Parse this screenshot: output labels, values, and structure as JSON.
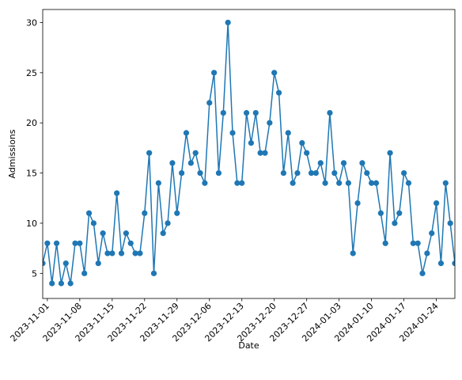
{
  "chart_data": {
    "type": "line",
    "title": "",
    "xlabel": "Date",
    "ylabel": "Admissions",
    "x_start": "2023-10-31",
    "x_end": "2024-01-28",
    "ylim": [
      2.5,
      31.3
    ],
    "x_tick_labels": [
      "2023-11-01",
      "2023-11-08",
      "2023-11-15",
      "2023-11-22",
      "2023-11-29",
      "2023-12-06",
      "2023-12-13",
      "2023-12-20",
      "2023-12-27",
      "2024-01-03",
      "2024-01-10",
      "2024-01-17",
      "2024-01-24"
    ],
    "y_ticks": [
      5,
      10,
      15,
      20,
      25,
      30
    ],
    "grid": false,
    "legend": "none",
    "marker": "circle",
    "series": [
      {
        "color": "#1f77b4",
        "x": [
          "2023-10-31",
          "2023-11-01",
          "2023-11-02",
          "2023-11-03",
          "2023-11-04",
          "2023-11-05",
          "2023-11-06",
          "2023-11-07",
          "2023-11-08",
          "2023-11-09",
          "2023-11-10",
          "2023-11-11",
          "2023-11-12",
          "2023-11-13",
          "2023-11-14",
          "2023-11-15",
          "2023-11-16",
          "2023-11-17",
          "2023-11-18",
          "2023-11-19",
          "2023-11-20",
          "2023-11-21",
          "2023-11-22",
          "2023-11-23",
          "2023-11-24",
          "2023-11-25",
          "2023-11-26",
          "2023-11-27",
          "2023-11-28",
          "2023-11-29",
          "2023-11-30",
          "2023-12-01",
          "2023-12-02",
          "2023-12-03",
          "2023-12-04",
          "2023-12-05",
          "2023-12-06",
          "2023-12-07",
          "2023-12-08",
          "2023-12-09",
          "2023-12-10",
          "2023-12-11",
          "2023-12-12",
          "2023-12-13",
          "2023-12-14",
          "2023-12-15",
          "2023-12-16",
          "2023-12-17",
          "2023-12-18",
          "2023-12-19",
          "2023-12-20",
          "2023-12-21",
          "2023-12-22",
          "2023-12-23",
          "2023-12-24",
          "2023-12-25",
          "2023-12-26",
          "2023-12-27",
          "2023-12-28",
          "2023-12-29",
          "2023-12-30",
          "2023-12-31",
          "2024-01-01",
          "2024-01-02",
          "2024-01-03",
          "2024-01-04",
          "2024-01-05",
          "2024-01-06",
          "2024-01-07",
          "2024-01-08",
          "2024-01-09",
          "2024-01-10",
          "2024-01-11",
          "2024-01-12",
          "2024-01-13",
          "2024-01-14",
          "2024-01-15",
          "2024-01-16",
          "2024-01-17",
          "2024-01-18",
          "2024-01-19",
          "2024-01-20",
          "2024-01-21",
          "2024-01-22",
          "2024-01-23",
          "2024-01-24",
          "2024-01-25",
          "2024-01-26",
          "2024-01-27",
          "2024-01-28"
        ],
        "values": [
          6,
          8,
          4,
          8,
          4,
          6,
          4,
          8,
          8,
          5,
          11,
          10,
          6,
          9,
          7,
          7,
          13,
          7,
          9,
          8,
          7,
          7,
          11,
          17,
          5,
          14,
          9,
          10,
          16,
          11,
          15,
          19,
          16,
          17,
          15,
          14,
          22,
          25,
          15,
          21,
          30,
          19,
          14,
          14,
          21,
          18,
          21,
          17,
          17,
          20,
          25,
          23,
          15,
          19,
          14,
          15,
          18,
          17,
          15,
          15,
          16,
          14,
          21,
          15,
          14,
          16,
          14,
          7,
          12,
          16,
          15,
          14,
          14,
          11,
          8,
          17,
          10,
          11,
          15,
          14,
          8,
          8,
          5,
          7,
          9,
          12,
          6,
          14,
          10,
          6
        ]
      }
    ]
  }
}
